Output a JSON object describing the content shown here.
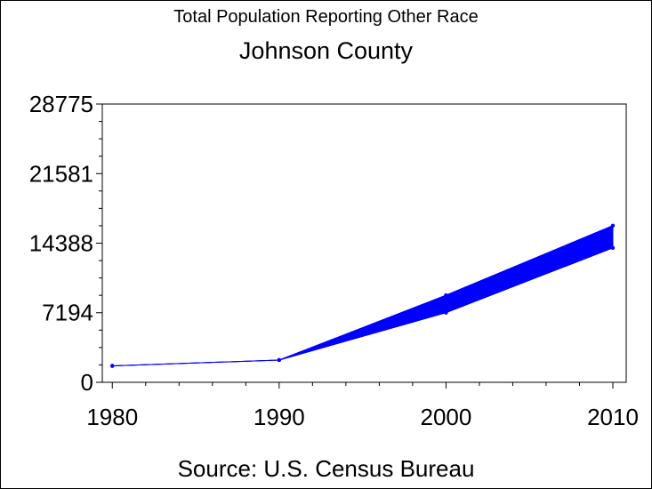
{
  "chart_data": {
    "type": "line",
    "title": "Total Population Reporting Other Race",
    "subtitle": "Johnson County",
    "footnote": "Source: U.S. Census Bureau",
    "x": [
      1980,
      1990,
      2000,
      2010
    ],
    "x_tick_labels": [
      "1980",
      "1990",
      "2000",
      "2010"
    ],
    "xlim": [
      1979.4,
      2010.8
    ],
    "ylim": [
      0,
      28775
    ],
    "y_ticks": [
      0,
      7194,
      14388,
      21581,
      28775
    ],
    "y_tick_labels": [
      "0",
      "7194",
      "14388",
      "21581",
      "28775"
    ],
    "series": [
      {
        "values": [
          1700,
          2300,
          7200,
          13900
        ]
      },
      {
        "values": [
          1700,
          2300,
          9000,
          16200
        ]
      }
    ],
    "fill_between_series": true,
    "color": "#0000ff",
    "grid": false,
    "legend": "none"
  }
}
